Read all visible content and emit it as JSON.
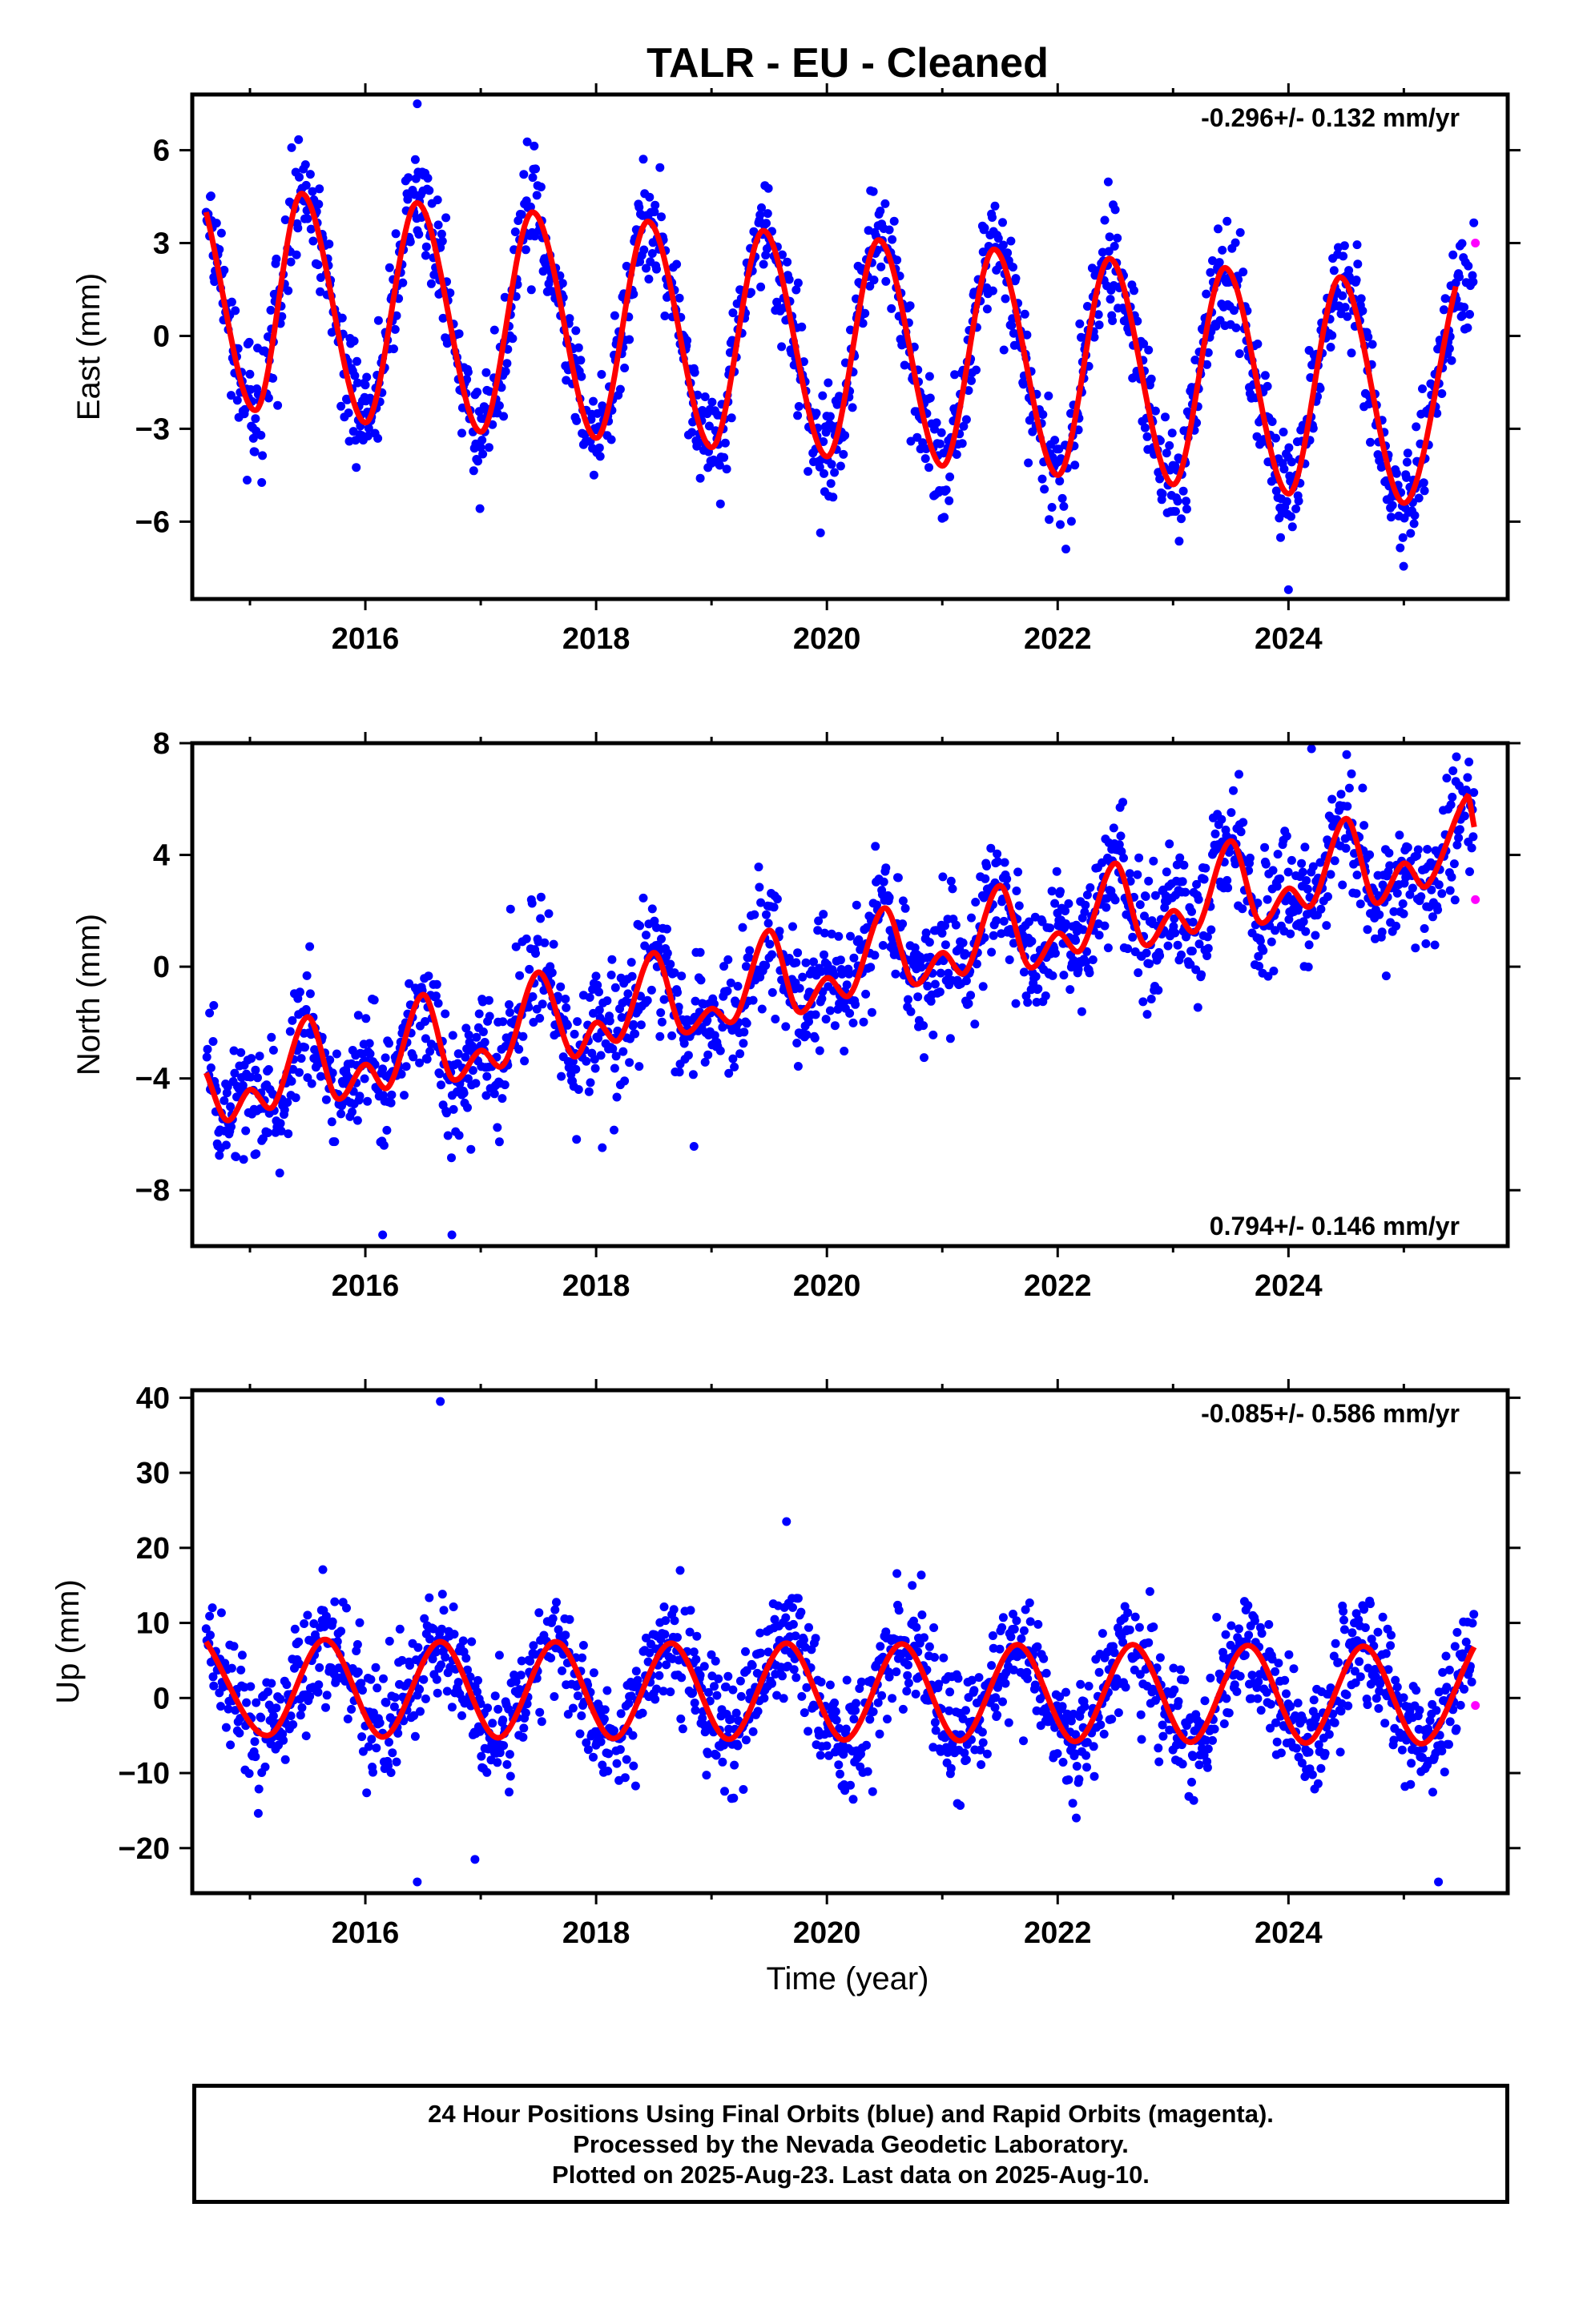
{
  "title": "TALR  - EU - Cleaned",
  "x_axis_label": "Time (year)",
  "footer": {
    "line1": "24 Hour Positions Using Final Orbits (blue) and Rapid Orbits (magenta).",
    "line2": "Processed by the Nevada Geodetic Laboratory.",
    "line3": "Plotted on 2025-Aug-23. Last data on 2025-Aug-10."
  },
  "colors": {
    "final_orbits": "#0000ff",
    "rapid_orbits": "#ff00ff",
    "model_fit": "#ff0000",
    "frame": "#000000"
  },
  "chart_data": [
    {
      "type": "scatter",
      "panel": "east",
      "ylabel": "East (mm)",
      "rate_text": "-0.296+/- 0.132 mm/yr",
      "rate_position": "top-right",
      "xlim": [
        2014.5,
        2025.9
      ],
      "ylim": [
        -8.5,
        7.8
      ],
      "xticks": [
        2016,
        2018,
        2020,
        2022,
        2024
      ],
      "yticks": [
        -6,
        -3,
        0,
        3,
        6
      ],
      "model": {
        "trend_mm_per_yr": -0.296,
        "offset": 0.0,
        "annual_amp": 3.5,
        "annual_peak": 0.45,
        "semi_amp": 0.35,
        "semi_phase": 0.25,
        "noise_sd": 0.9,
        "amp_change_per_yr": 0.0
      },
      "data_span": [
        2014.62,
        2025.61
      ],
      "fit_anchor_points": [
        [
          2014.62,
          4.0
        ],
        [
          2015.05,
          -2.4
        ],
        [
          2015.45,
          4.6
        ],
        [
          2016.0,
          -2.8
        ],
        [
          2016.45,
          4.3
        ],
        [
          2017.0,
          -3.1
        ],
        [
          2017.45,
          4.0
        ],
        [
          2018.0,
          -3.3
        ],
        [
          2018.45,
          3.7
        ],
        [
          2019.0,
          -3.6
        ],
        [
          2019.45,
          3.4
        ],
        [
          2020.0,
          -3.9
        ],
        [
          2020.45,
          3.1
        ],
        [
          2021.0,
          -4.2
        ],
        [
          2021.45,
          2.8
        ],
        [
          2022.0,
          -4.5
        ],
        [
          2022.45,
          2.5
        ],
        [
          2023.0,
          -4.8
        ],
        [
          2023.45,
          2.2
        ],
        [
          2024.0,
          -5.1
        ],
        [
          2024.45,
          1.9
        ],
        [
          2025.0,
          -5.4
        ],
        [
          2025.45,
          1.6
        ]
      ],
      "rapid_points": [
        [
          2025.62,
          3.0
        ]
      ],
      "outliers": [
        [
          2016.45,
          7.5
        ],
        [
          2024.0,
          -8.2
        ]
      ]
    },
    {
      "type": "scatter",
      "panel": "north",
      "ylabel": "North (mm)",
      "rate_text": "0.794+/- 0.146 mm/yr",
      "rate_position": "bottom-right",
      "xlim": [
        2014.5,
        2025.9
      ],
      "ylim": [
        -10.0,
        8.0
      ],
      "xticks": [
        2016,
        2018,
        2020,
        2022,
        2024
      ],
      "yticks": [
        -8,
        -4,
        0,
        4,
        8
      ],
      "model": {
        "trend_mm_per_yr": 0.794,
        "offset": -4.8,
        "annual_amp": 0.6,
        "annual_peak": 0.5,
        "semi_amp": 1.2,
        "semi_phase": 0.45,
        "noise_sd": 1.1,
        "amp_change_per_yr": 0.0
      },
      "data_span": [
        2014.62,
        2025.61
      ],
      "fit_anchor_points": [
        [
          2014.62,
          -3.8
        ],
        [
          2014.8,
          -5.5
        ],
        [
          2015.0,
          -4.4
        ],
        [
          2015.2,
          -5.0
        ],
        [
          2015.5,
          -1.8
        ],
        [
          2015.75,
          -4.7
        ],
        [
          2016.0,
          -3.5
        ],
        [
          2016.2,
          -4.3
        ],
        [
          2016.5,
          -1.0
        ],
        [
          2016.75,
          -4.0
        ],
        [
          2017.0,
          -3.0
        ],
        [
          2017.2,
          -3.5
        ],
        [
          2017.5,
          -0.2
        ],
        [
          2017.8,
          -3.2
        ],
        [
          2018.0,
          -2.0
        ],
        [
          2018.2,
          -2.6
        ],
        [
          2018.5,
          0.5
        ],
        [
          2018.75,
          -2.3
        ],
        [
          2019.0,
          -1.5
        ],
        [
          2019.2,
          -1.9
        ],
        [
          2019.5,
          1.3
        ],
        [
          2019.75,
          -1.6
        ],
        [
          2020.0,
          -0.4
        ],
        [
          2020.2,
          -1.0
        ],
        [
          2020.5,
          2.1
        ],
        [
          2020.75,
          -0.6
        ],
        [
          2021.0,
          0.5
        ],
        [
          2021.2,
          -0.2
        ],
        [
          2021.5,
          2.9
        ],
        [
          2021.75,
          0.0
        ],
        [
          2022.0,
          1.2
        ],
        [
          2022.2,
          0.6
        ],
        [
          2022.5,
          3.7
        ],
        [
          2022.75,
          0.8
        ],
        [
          2023.0,
          2.0
        ],
        [
          2023.2,
          1.3
        ],
        [
          2023.5,
          4.5
        ],
        [
          2023.75,
          1.6
        ],
        [
          2024.0,
          2.8
        ],
        [
          2024.2,
          2.2
        ],
        [
          2024.5,
          5.3
        ],
        [
          2024.75,
          2.3
        ],
        [
          2025.0,
          3.7
        ],
        [
          2025.2,
          2.9
        ],
        [
          2025.55,
          6.1
        ],
        [
          2025.61,
          5.0
        ]
      ],
      "rapid_points": [
        [
          2025.62,
          2.4
        ]
      ],
      "outliers": [
        [
          2016.15,
          -9.6
        ],
        [
          2016.75,
          -9.6
        ],
        [
          2024.2,
          7.8
        ]
      ]
    },
    {
      "type": "scatter",
      "panel": "up",
      "ylabel": "Up (mm)",
      "rate_text": "-0.085+/- 0.586 mm/yr",
      "rate_position": "top-right",
      "xlim": [
        2014.5,
        2025.9
      ],
      "ylim": [
        -26.0,
        41.0
      ],
      "xticks": [
        2016,
        2018,
        2020,
        2022,
        2024
      ],
      "yticks": [
        -20,
        -10,
        0,
        10,
        20,
        30,
        40
      ],
      "model": {
        "trend_mm_per_yr": -0.085,
        "offset": 1.5,
        "annual_amp": 6.5,
        "annual_peak": 0.62,
        "semi_amp": 0.5,
        "semi_phase": 0.1,
        "noise_sd": 4.0,
        "amp_change_per_yr": 0.0
      },
      "data_span": [
        2014.62,
        2025.61
      ],
      "fit_anchor_points": [
        [
          2014.62,
          7.5
        ],
        [
          2015.15,
          -5.0
        ],
        [
          2015.65,
          7.8
        ],
        [
          2016.15,
          -5.2
        ],
        [
          2016.65,
          7.5
        ],
        [
          2017.15,
          -5.3
        ],
        [
          2017.65,
          7.5
        ],
        [
          2018.15,
          -5.4
        ],
        [
          2018.65,
          7.3
        ],
        [
          2019.15,
          -5.5
        ],
        [
          2019.65,
          7.3
        ],
        [
          2020.15,
          -5.6
        ],
        [
          2020.65,
          7.2
        ],
        [
          2021.15,
          -5.7
        ],
        [
          2021.65,
          7.1
        ],
        [
          2022.15,
          -5.8
        ],
        [
          2022.65,
          7.1
        ],
        [
          2023.15,
          -5.9
        ],
        [
          2023.65,
          7.0
        ],
        [
          2024.15,
          -6.0
        ],
        [
          2024.65,
          6.9
        ],
        [
          2025.15,
          -6.1
        ],
        [
          2025.61,
          6.8
        ]
      ],
      "rapid_points": [
        [
          2025.62,
          -1.0
        ]
      ],
      "outliers": [
        [
          2016.65,
          39.5
        ],
        [
          2016.45,
          -24.5
        ],
        [
          2016.95,
          -21.5
        ],
        [
          2019.65,
          23.5
        ],
        [
          2025.3,
          -24.5
        ]
      ]
    }
  ]
}
